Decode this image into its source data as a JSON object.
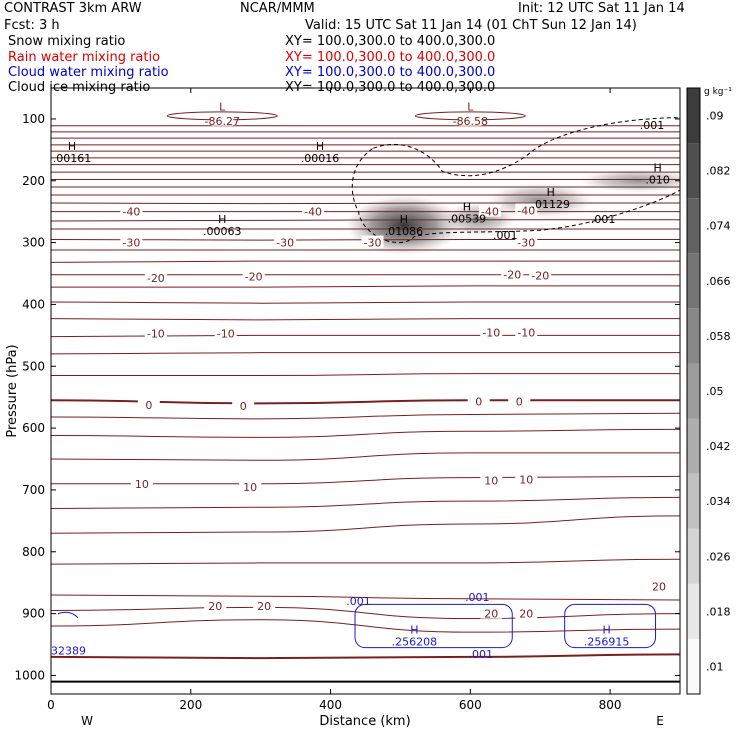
{
  "header": {
    "model": "CONTRAST  3km ARW",
    "org": "NCAR/MMM",
    "init": "Init: 12 UTC Sat 11 Jan 14",
    "fcst": "Fcst:     3 h",
    "valid": "Valid: 15 UTC Sat 11 Jan 14 (01 ChT Sun 12 Jan 14)"
  },
  "fields": [
    {
      "name": "Snow mixing ratio",
      "xy": "XY= 100.0,300.0 to 400.0,300.0",
      "color": "#000000"
    },
    {
      "name": "Rain water mixing ratio",
      "xy": "XY= 100.0,300.0 to 400.0,300.0",
      "color": "#dd0000"
    },
    {
      "name": "Cloud water mixing ratio",
      "xy": "XY= 100.0,300.0 to 400.0,300.0",
      "color": "#0000cc"
    },
    {
      "name": "Cloud ice mixing ratio",
      "xy": "XY= 100.0,300.0 to 400.0,300.0",
      "color": "#000000"
    }
  ],
  "colors": {
    "temperature": "#7a1f1f",
    "cloud_water": "#1a1acc",
    "cloud_ice": "#000000",
    "snow_shade": "#333333"
  },
  "chart_data": {
    "type": "heatmap",
    "xlabel": "Distance (km)",
    "ylabel": "Pressure (hPa)",
    "xlim": [
      0,
      900
    ],
    "ylim": [
      1030,
      50
    ],
    "x_ticks": [
      "0",
      "200",
      "400",
      "600",
      "800"
    ],
    "y_ticks": [
      "100",
      "200",
      "300",
      "400",
      "500",
      "600",
      "700",
      "800",
      "900",
      "1000"
    ],
    "x_ends": {
      "left": "W",
      "right": "E"
    },
    "colorbar": {
      "units": "g kg⁻¹",
      "levels": [
        ".01",
        ".018",
        ".026",
        ".034",
        ".042",
        ".05",
        ".058",
        ".066",
        ".074",
        ".082",
        ".09"
      ]
    },
    "temperature_labels": [
      {
        "text": "-86.27",
        "x": 245,
        "p": 103
      },
      {
        "text": "-86.58",
        "x": 600,
        "p": 103
      },
      {
        "text": "-40",
        "x": 115,
        "p": 250
      },
      {
        "text": "-40",
        "x": 375,
        "p": 250
      },
      {
        "text": "-40",
        "x": 628,
        "p": 250
      },
      {
        "text": "-40",
        "x": 680,
        "p": 248
      },
      {
        "text": "-30",
        "x": 115,
        "p": 300
      },
      {
        "text": "-30",
        "x": 335,
        "p": 300
      },
      {
        "text": "-30",
        "x": 460,
        "p": 300
      },
      {
        "text": "-30",
        "x": 680,
        "p": 300
      },
      {
        "text": "-20",
        "x": 150,
        "p": 357
      },
      {
        "text": "-20",
        "x": 290,
        "p": 355
      },
      {
        "text": "-20",
        "x": 660,
        "p": 352
      },
      {
        "text": "-20",
        "x": 700,
        "p": 353
      },
      {
        "text": "-10",
        "x": 150,
        "p": 447
      },
      {
        "text": "-10",
        "x": 250,
        "p": 447
      },
      {
        "text": "-10",
        "x": 630,
        "p": 445
      },
      {
        "text": "-10",
        "x": 680,
        "p": 445
      },
      {
        "text": "0",
        "x": 140,
        "p": 563
      },
      {
        "text": "0",
        "x": 275,
        "p": 564
      },
      {
        "text": "0",
        "x": 612,
        "p": 557
      },
      {
        "text": "0",
        "x": 670,
        "p": 557
      },
      {
        "text": "10",
        "x": 130,
        "p": 690
      },
      {
        "text": "10",
        "x": 285,
        "p": 695
      },
      {
        "text": "10",
        "x": 630,
        "p": 685
      },
      {
        "text": "10",
        "x": 680,
        "p": 683
      },
      {
        "text": "20",
        "x": 235,
        "p": 888
      },
      {
        "text": "20",
        "x": 305,
        "p": 888
      },
      {
        "text": "20",
        "x": 630,
        "p": 900
      },
      {
        "text": "20",
        "x": 680,
        "p": 900
      },
      {
        "text": "20",
        "x": 870,
        "p": 856
      }
    ],
    "extrema": [
      {
        "mark": "L",
        "value": "",
        "x": 245,
        "p": 86,
        "group": "temp"
      },
      {
        "mark": "L",
        "value": "",
        "x": 600,
        "p": 86,
        "group": "temp"
      },
      {
        "mark": "H",
        "value": ".00161",
        "x": 30,
        "p": 150,
        "group": "ice"
      },
      {
        "mark": "H",
        "value": ".00016",
        "x": 385,
        "p": 150,
        "group": "ice"
      },
      {
        "mark": "H",
        "value": ".00063",
        "x": 245,
        "p": 268,
        "group": "ice"
      },
      {
        "mark": "H",
        "value": ".01086",
        "x": 505,
        "p": 268,
        "group": "ice"
      },
      {
        "mark": "H",
        "value": ".00539",
        "x": 595,
        "p": 248,
        "group": "ice"
      },
      {
        "mark": "H",
        "value": ".01129",
        "x": 715,
        "p": 225,
        "group": "ice"
      },
      {
        "mark": "H",
        "value": ".010",
        "x": 868,
        "p": 185,
        "group": "ice"
      },
      {
        "mark": "H",
        "value": ".256208",
        "x": 520,
        "p": 932,
        "group": "cloud"
      },
      {
        "mark": "H",
        "value": ".256915",
        "x": 795,
        "p": 932,
        "group": "cloud"
      }
    ],
    "ice_labels": [
      {
        "text": ".001",
        "x": 860,
        "p": 110
      },
      {
        "text": ".001",
        "x": 790,
        "p": 262
      },
      {
        "text": ".001",
        "x": 650,
        "p": 288
      }
    ],
    "cloud_labels": [
      {
        "text": ".001",
        "x": 440,
        "p": 880
      },
      {
        "text": ".001",
        "x": 610,
        "p": 873
      },
      {
        "text": ".001",
        "x": 615,
        "p": 965
      },
      {
        "text": "32389",
        "x": 25,
        "p": 960
      }
    ]
  }
}
